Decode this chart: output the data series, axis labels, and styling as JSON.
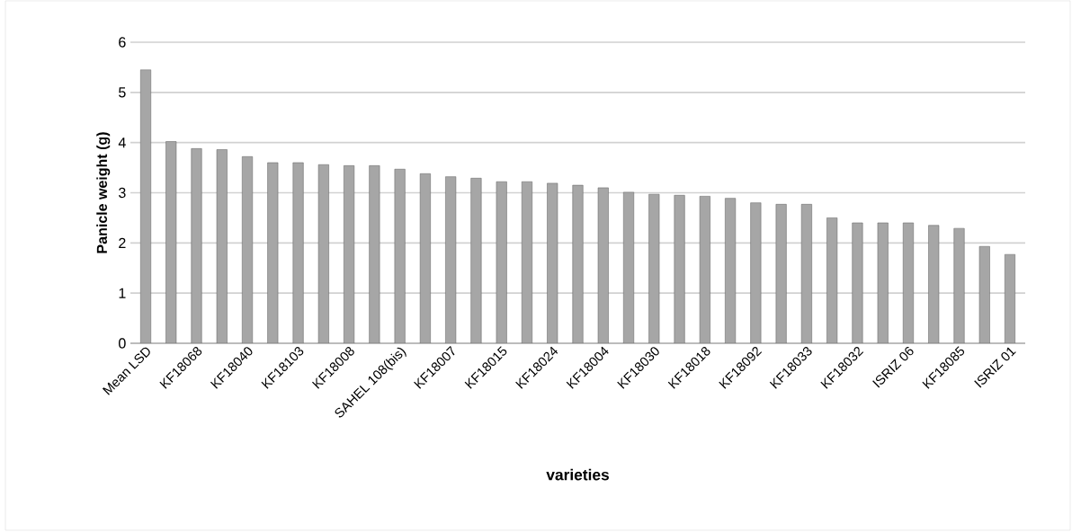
{
  "chart_data": {
    "type": "bar",
    "xlabel": "varieties",
    "ylabel": "Panicle weight (g)",
    "categories": [
      "Mean LSD",
      null,
      "KF18068",
      null,
      "KF18040",
      null,
      "KF18103",
      null,
      "KF18008",
      null,
      "SAHEL 108(bis)",
      null,
      "KF18007",
      null,
      "KF18015",
      null,
      "KF18024",
      null,
      "KF18004",
      null,
      "KF18030",
      null,
      "KF18018",
      null,
      "KF18092",
      null,
      "KF18033",
      null,
      "KF18032",
      null,
      "ISRIZ 06",
      null,
      "KF18085",
      null,
      "ISRIZ 01"
    ],
    "values": [
      5.45,
      4.02,
      3.88,
      3.86,
      3.72,
      3.6,
      3.6,
      3.56,
      3.54,
      3.54,
      3.47,
      3.38,
      3.32,
      3.29,
      3.22,
      3.22,
      3.19,
      3.15,
      3.1,
      3.01,
      2.97,
      2.95,
      2.93,
      2.89,
      2.8,
      2.77,
      2.77,
      2.5,
      2.4,
      2.4,
      2.4,
      2.35,
      2.29,
      1.93,
      1.77
    ],
    "color": "#a6a6a6",
    "ylim": [
      0,
      6
    ],
    "yticks": [
      0,
      1,
      2,
      3,
      4,
      5,
      6
    ],
    "grid": "y"
  }
}
